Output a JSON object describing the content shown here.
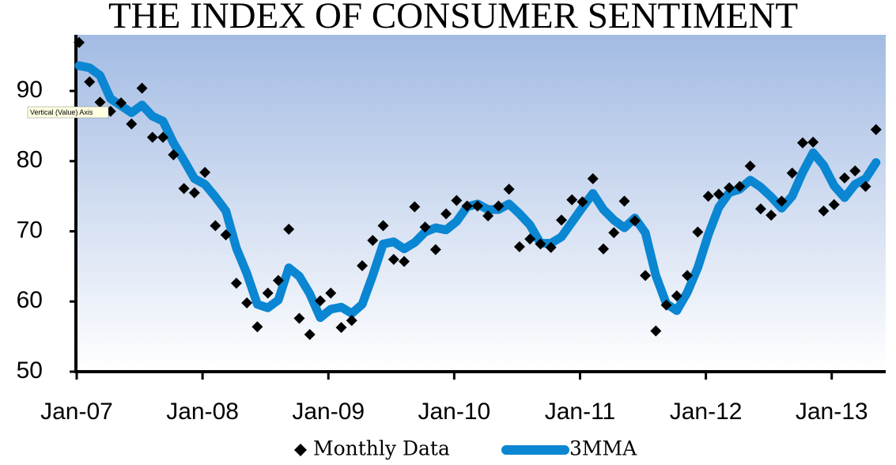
{
  "chart_data": {
    "type": "line",
    "title": "THE INDEX OF CONSUMER SENTIMENT",
    "tooltip": "Vertical (Value) Axis",
    "categories": [
      "Jan-07",
      null,
      null,
      null,
      null,
      null,
      null,
      null,
      null,
      null,
      null,
      null,
      "Jan-08",
      null,
      null,
      null,
      null,
      null,
      null,
      null,
      null,
      null,
      null,
      null,
      "Jan-09",
      null,
      null,
      null,
      null,
      null,
      null,
      null,
      null,
      null,
      null,
      null,
      "Jan-10",
      null,
      null,
      null,
      null,
      null,
      null,
      null,
      null,
      null,
      null,
      null,
      "Jan-11",
      null,
      null,
      null,
      null,
      null,
      null,
      null,
      null,
      null,
      null,
      null,
      "Jan-12",
      null,
      null,
      null,
      null,
      null,
      null,
      null,
      null,
      null,
      null,
      null,
      "Jan-13",
      null,
      null,
      null,
      null
    ],
    "series": [
      {
        "name": "Monthly Data",
        "color": "#000000",
        "marker": "diamond",
        "values": [
          96.9,
          91.3,
          88.4,
          87.1,
          88.3,
          85.3,
          90.4,
          83.4,
          83.4,
          80.9,
          76.1,
          75.5,
          78.4,
          70.8,
          69.5,
          62.6,
          59.8,
          56.4,
          61.2,
          63.0,
          70.3,
          57.6,
          55.3,
          60.1,
          61.2,
          56.3,
          57.3,
          65.1,
          68.7,
          70.8,
          66.0,
          65.7,
          73.5,
          70.6,
          67.4,
          72.5,
          74.4,
          73.6,
          73.6,
          72.2,
          73.6,
          76.0,
          67.8,
          68.9,
          68.2,
          67.7,
          71.6,
          74.5,
          74.2,
          77.5,
          67.5,
          69.8,
          74.3,
          71.5,
          63.7,
          55.8,
          59.5,
          60.8,
          63.7,
          69.9,
          75.0,
          75.3,
          76.2,
          76.4,
          79.3,
          73.2,
          72.3,
          74.3,
          78.3,
          82.6,
          82.7,
          72.9,
          73.8,
          77.6,
          78.6,
          76.4,
          84.5
        ]
      },
      {
        "name": "3MMA",
        "color": "#0a86d2",
        "marker": "line",
        "values": [
          93.6,
          93.3,
          92.2,
          88.9,
          87.9,
          86.9,
          88.0,
          86.4,
          85.7,
          82.6,
          80.1,
          77.5,
          76.7,
          74.9,
          72.9,
          67.6,
          64.0,
          59.6,
          59.1,
          60.2,
          64.8,
          63.6,
          61.1,
          57.7,
          58.9,
          59.2,
          58.3,
          59.6,
          63.7,
          68.2,
          68.5,
          67.5,
          68.4,
          69.9,
          70.5,
          70.2,
          71.4,
          73.5,
          73.9,
          73.1,
          73.1,
          73.9,
          72.5,
          70.9,
          68.3,
          68.3,
          69.2,
          71.3,
          73.4,
          75.4,
          73.1,
          71.6,
          70.5,
          71.9,
          69.8,
          63.7,
          59.7,
          58.7,
          61.3,
          64.8,
          69.5,
          73.4,
          75.5,
          76.0,
          77.3,
          76.3,
          74.9,
          73.3,
          75.0,
          78.4,
          81.2,
          79.4,
          76.5,
          74.8,
          76.7,
          77.5,
          79.8
        ]
      }
    ],
    "ylim": [
      50,
      98
    ],
    "yticks": [
      50,
      60,
      70,
      80,
      90
    ],
    "grid": false,
    "legend": "bottom"
  }
}
